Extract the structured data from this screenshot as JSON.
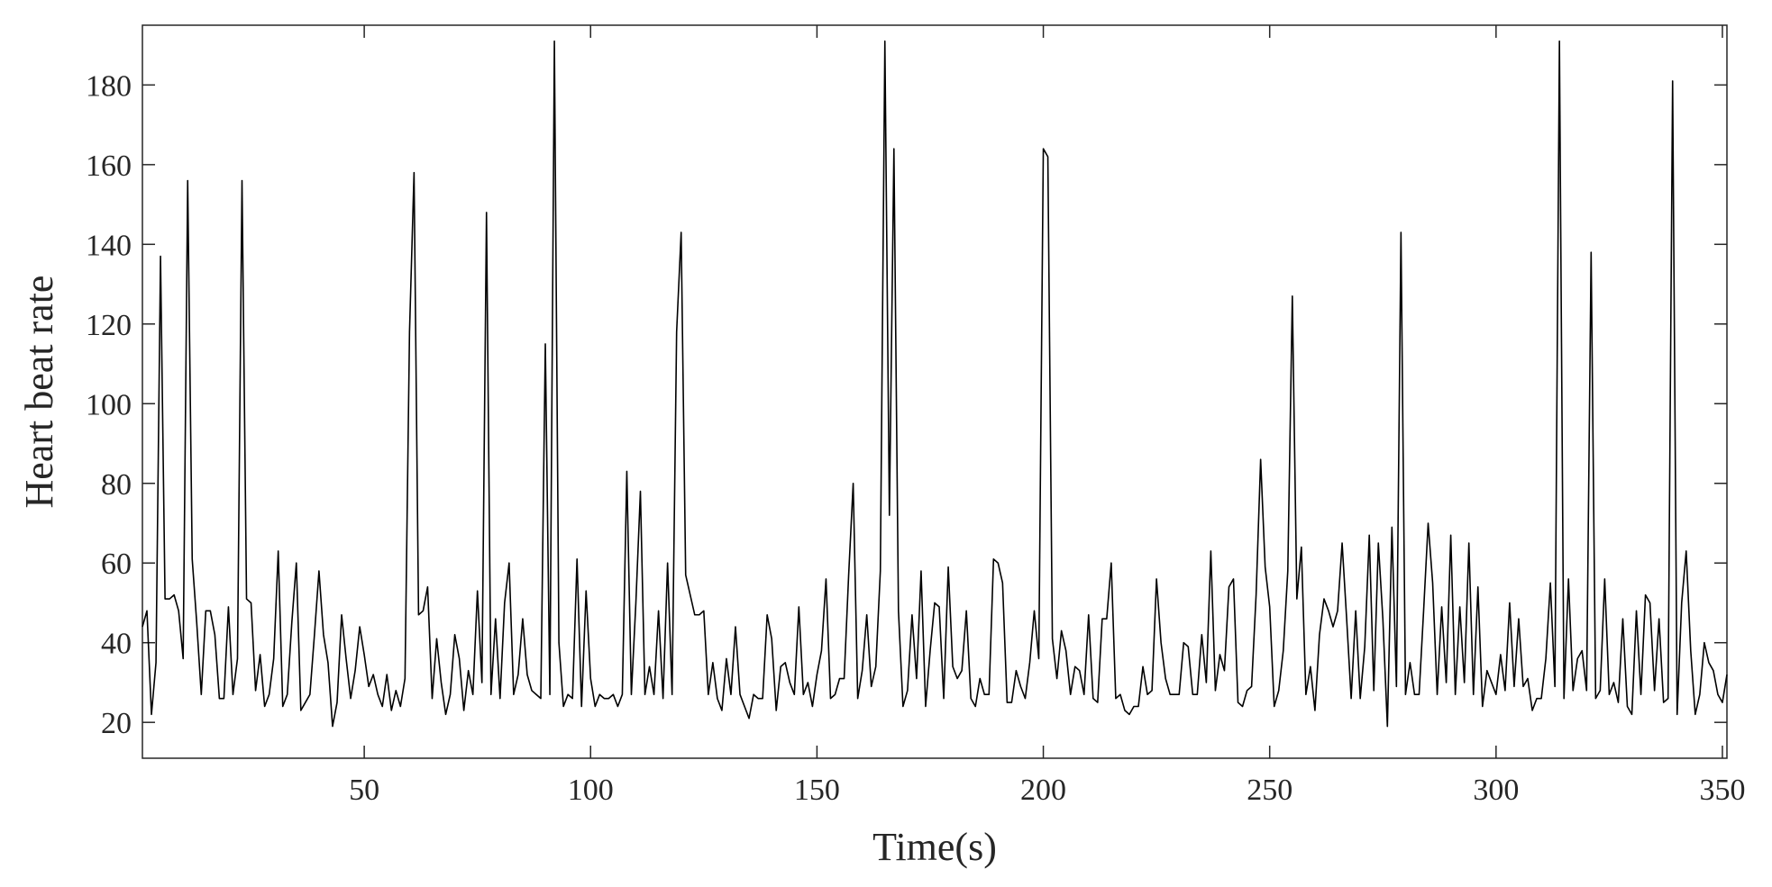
{
  "chart_data": {
    "type": "line",
    "xlabel": "Time(s)",
    "ylabel": "Heart beat rate",
    "color": "#000000",
    "xlim": [
      1,
      351
    ],
    "xticks": [
      50,
      100,
      150,
      200,
      250,
      300,
      350
    ],
    "ylim": [
      11,
      195
    ],
    "yticks": [
      20,
      40,
      60,
      80,
      100,
      120,
      140,
      160,
      180
    ],
    "x": [
      1,
      2,
      3,
      4,
      5,
      6,
      7,
      8,
      9,
      10,
      11,
      12,
      13,
      14,
      15,
      16,
      17,
      18,
      19,
      20,
      21,
      22,
      23,
      24,
      25,
      26,
      27,
      28,
      29,
      30,
      31,
      32,
      33,
      34,
      35,
      36,
      37,
      38,
      39,
      40,
      41,
      42,
      43,
      44,
      45,
      46,
      47,
      48,
      49,
      50,
      51,
      52,
      53,
      54,
      55,
      56,
      57,
      58,
      59,
      60,
      61,
      62,
      63,
      64,
      65,
      66,
      67,
      68,
      69,
      70,
      71,
      72,
      73,
      74,
      75,
      76,
      77,
      78,
      79,
      80,
      81,
      82,
      83,
      84,
      85,
      86,
      87,
      88,
      89,
      90,
      91,
      92,
      93,
      94,
      95,
      96,
      97,
      98,
      99,
      100,
      101,
      102,
      103,
      104,
      105,
      106,
      107,
      108,
      109,
      110,
      111,
      112,
      113,
      114,
      115,
      116,
      117,
      118,
      119,
      120,
      121,
      122,
      123,
      124,
      125,
      126,
      127,
      128,
      129,
      130,
      131,
      132,
      133,
      134,
      135,
      136,
      137,
      138,
      139,
      140,
      141,
      142,
      143,
      144,
      145,
      146,
      147,
      148,
      149,
      150,
      151,
      152,
      153,
      154,
      155,
      156,
      157,
      158,
      159,
      160,
      161,
      162,
      163,
      164,
      165,
      166,
      167,
      168,
      169,
      170,
      171,
      172,
      173,
      174,
      175,
      176,
      177,
      178,
      179,
      180,
      181,
      182,
      183,
      184,
      185,
      186,
      187,
      188,
      189,
      190,
      191,
      192,
      193,
      194,
      195,
      196,
      197,
      198,
      199,
      200,
      201,
      202,
      203,
      204,
      205,
      206,
      207,
      208,
      209,
      210,
      211,
      212,
      213,
      214,
      215,
      216,
      217,
      218,
      219,
      220,
      221,
      222,
      223,
      224,
      225,
      226,
      227,
      228,
      229,
      230,
      231,
      232,
      233,
      234,
      235,
      236,
      237,
      238,
      239,
      240,
      241,
      242,
      243,
      244,
      245,
      246,
      247,
      248,
      249,
      250,
      251,
      252,
      253,
      254,
      255,
      256,
      257,
      258,
      259,
      260,
      261,
      262,
      263,
      264,
      265,
      266,
      267,
      268,
      269,
      270,
      271,
      272,
      273,
      274,
      275,
      276,
      277,
      278,
      279,
      280,
      281,
      282,
      283,
      284,
      285,
      286,
      287,
      288,
      289,
      290,
      291,
      292,
      293,
      294,
      295,
      296,
      297,
      298,
      299,
      300,
      301,
      302,
      303,
      304,
      305,
      306,
      307,
      308,
      309,
      310,
      311,
      312,
      313,
      314,
      315,
      316,
      317,
      318,
      319,
      320,
      321,
      322,
      323,
      324,
      325,
      326,
      327,
      328,
      329,
      330,
      331,
      332,
      333,
      334,
      335,
      336,
      337,
      338,
      339,
      340,
      341,
      342,
      343,
      344,
      345,
      346,
      347,
      348,
      349,
      350,
      351
    ],
    "values": [
      44,
      48,
      22,
      35,
      137,
      51,
      51,
      52,
      48,
      36,
      156,
      61,
      45,
      27,
      48,
      48,
      42,
      26,
      26,
      49,
      27,
      36,
      156,
      51,
      50,
      28,
      37,
      24,
      27,
      36,
      63,
      24,
      27,
      45,
      60,
      23,
      25,
      27,
      42,
      58,
      42,
      35,
      19,
      25,
      47,
      36,
      26,
      33,
      44,
      37,
      29,
      32,
      27,
      24,
      32,
      23,
      28,
      24,
      31,
      118,
      158,
      47,
      48,
      54,
      26,
      41,
      30,
      22,
      27,
      42,
      36,
      23,
      33,
      27,
      53,
      30,
      148,
      27,
      46,
      26,
      50,
      60,
      27,
      32,
      46,
      32,
      28,
      27,
      26,
      115,
      27,
      191,
      40,
      24,
      27,
      26,
      61,
      24,
      53,
      31,
      24,
      27,
      26,
      26,
      27,
      24,
      27,
      83,
      27,
      50,
      78,
      27,
      34,
      27,
      48,
      26,
      60,
      27,
      118,
      143,
      57,
      52,
      47,
      47,
      48,
      27,
      35,
      26,
      23,
      36,
      27,
      44,
      27,
      24,
      21,
      27,
      26,
      26,
      47,
      41,
      23,
      34,
      35,
      30,
      27,
      49,
      27,
      30,
      24,
      32,
      38,
      56,
      26,
      27,
      31,
      31,
      57,
      80,
      26,
      33,
      47,
      29,
      34,
      58,
      191,
      72,
      164,
      48,
      24,
      28,
      47,
      31,
      58,
      24,
      38,
      50,
      49,
      26,
      59,
      34,
      31,
      33,
      48,
      26,
      24,
      31,
      27,
      27,
      61,
      60,
      55,
      25,
      25,
      33,
      29,
      26,
      35,
      48,
      36,
      164,
      162,
      41,
      31,
      43,
      38,
      27,
      34,
      33,
      27,
      47,
      26,
      25,
      46,
      46,
      60,
      26,
      27,
      23,
      22,
      24,
      24,
      34,
      27,
      28,
      56,
      40,
      31,
      27,
      27,
      27,
      40,
      39,
      27,
      27,
      42,
      30,
      63,
      28,
      37,
      33,
      54,
      56,
      25,
      24,
      28,
      29,
      52,
      86,
      59,
      49,
      24,
      28,
      38,
      58,
      127,
      51,
      64,
      27,
      34,
      23,
      42,
      51,
      48,
      44,
      48,
      65,
      46,
      26,
      48,
      26,
      39,
      67,
      28,
      65,
      46,
      19,
      69,
      29,
      143,
      27,
      35,
      27,
      27,
      48,
      70,
      55,
      27,
      49,
      30,
      67,
      27,
      49,
      30,
      65,
      27,
      54,
      24,
      33,
      30,
      27,
      37,
      28,
      50,
      29,
      46,
      29,
      31,
      23,
      26,
      26,
      36,
      55,
      29,
      191,
      26,
      56,
      28,
      36,
      38,
      28,
      138,
      26,
      28,
      56,
      27,
      30,
      25,
      46,
      24,
      22,
      48,
      27,
      52,
      50,
      28,
      46,
      25,
      26,
      181,
      22,
      50,
      63,
      38,
      22,
      27,
      40,
      35,
      33,
      27,
      25,
      32
    ]
  }
}
